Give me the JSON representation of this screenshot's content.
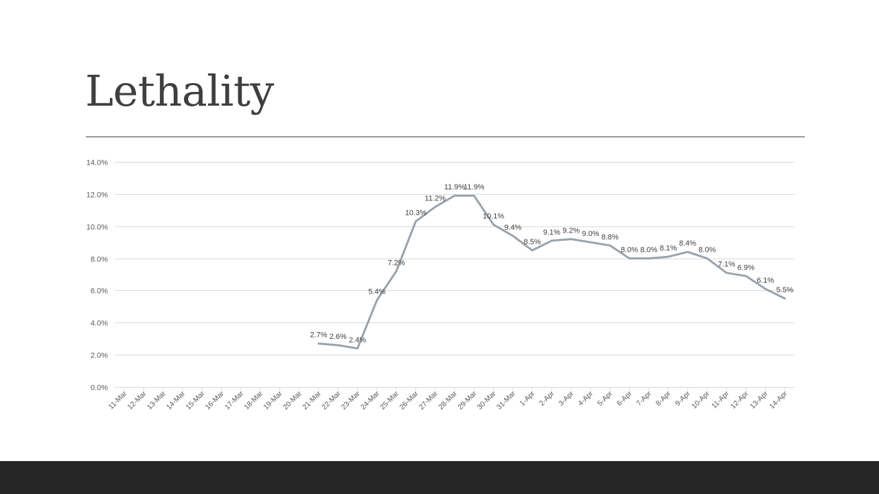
{
  "slide": {
    "title": "Lethality"
  },
  "colors": {
    "line": "#9aa3ad",
    "grid": "#d9d9d9",
    "axis_text": "#595959",
    "data_label": "#404040",
    "title": "#3f3f3f",
    "footer": "#262626"
  },
  "chart_data": {
    "type": "line",
    "title": "",
    "xlabel": "",
    "ylabel": "",
    "ylim": [
      0,
      14
    ],
    "yticks": [
      "0.0%",
      "2.0%",
      "4.0%",
      "6.0%",
      "8.0%",
      "10.0%",
      "12.0%",
      "14.0%"
    ],
    "grid": true,
    "legend": "none",
    "categories": [
      "11-Mar",
      "12-Mar",
      "13-Mar",
      "14-Mar",
      "15-Mar",
      "16-Mar",
      "17-Mar",
      "18-Mar",
      "19-Mar",
      "20-Mar",
      "21-Mar",
      "22-Mar",
      "23-Mar",
      "24-Mar",
      "25-Mar",
      "26-Mar",
      "27-Mar",
      "28-Mar",
      "29-Mar",
      "30-Mar",
      "31-Mar",
      "1-Apr",
      "2-Apr",
      "3-Apr",
      "4-Apr",
      "5-Apr",
      "6-Apr",
      "7-Apr",
      "8-Apr",
      "9-Apr",
      "10-Apr",
      "11-Apr",
      "12-Apr",
      "13-Apr",
      "14-Apr"
    ],
    "series": [
      {
        "values": [
          null,
          null,
          null,
          null,
          null,
          null,
          null,
          null,
          null,
          null,
          2.7,
          2.6,
          2.4,
          5.4,
          7.2,
          10.3,
          11.2,
          11.9,
          11.9,
          10.1,
          9.4,
          8.5,
          9.1,
          9.2,
          9.0,
          8.8,
          8.0,
          8.0,
          8.1,
          8.4,
          8.0,
          7.1,
          6.9,
          6.1,
          5.5
        ],
        "labels": [
          null,
          null,
          null,
          null,
          null,
          null,
          null,
          null,
          null,
          null,
          "2.7%",
          "2.6%",
          "2.4%",
          "5.4%",
          "7.2%",
          "10.3%",
          "11.2%",
          "11.9%",
          "11.9%",
          "10.1%",
          "9.4%",
          "8.5%",
          "9.1%",
          "9.2%",
          "9.0%",
          "8.8%",
          "8.0%",
          "8.0%",
          "8.1%",
          "8.4%",
          "8.0%",
          "7.1%",
          "6.9%",
          "6.1%",
          "5.5%"
        ]
      }
    ]
  }
}
